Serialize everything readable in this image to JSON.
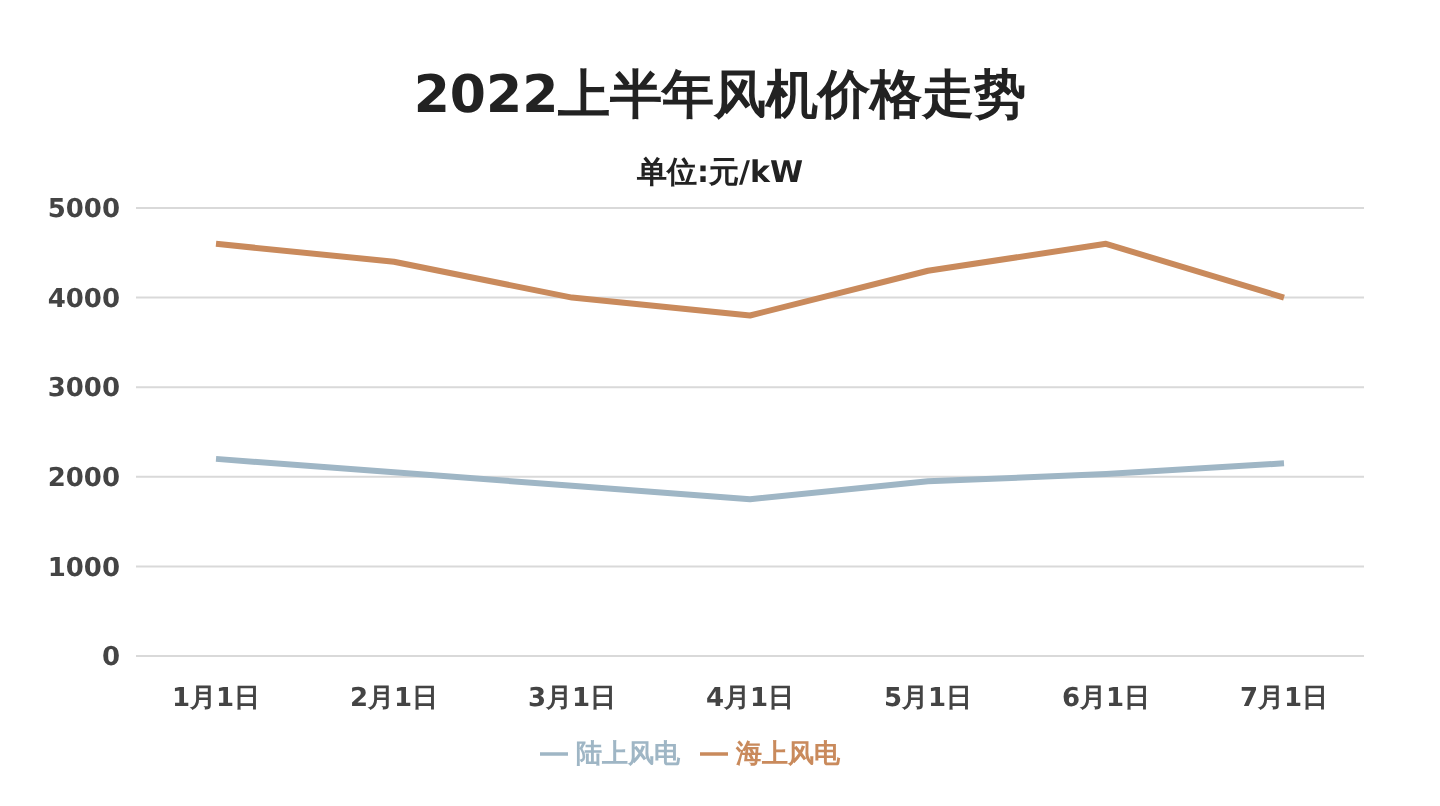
{
  "chart_data": {
    "type": "line",
    "title": "2022上半年风机价格走势",
    "subtitle": "单位:元/kW",
    "categories": [
      "1月1日",
      "2月1日",
      "3月1日",
      "4月1日",
      "5月1日",
      "6月1日",
      "7月1日"
    ],
    "series": [
      {
        "name": "陆上风电",
        "color": "#9fb6c5",
        "values": [
          2200,
          2050,
          1900,
          1750,
          1950,
          2030,
          2150
        ]
      },
      {
        "name": "海上风电",
        "color": "#c98a5c",
        "values": [
          4600,
          4400,
          4000,
          3800,
          4300,
          4600,
          4000
        ]
      }
    ],
    "ylim": [
      0,
      5000
    ],
    "yticks": [
      0,
      1000,
      2000,
      3000,
      4000,
      5000
    ],
    "grid": "y",
    "legend": "bottom",
    "marker": "none",
    "line_style": "solid"
  }
}
